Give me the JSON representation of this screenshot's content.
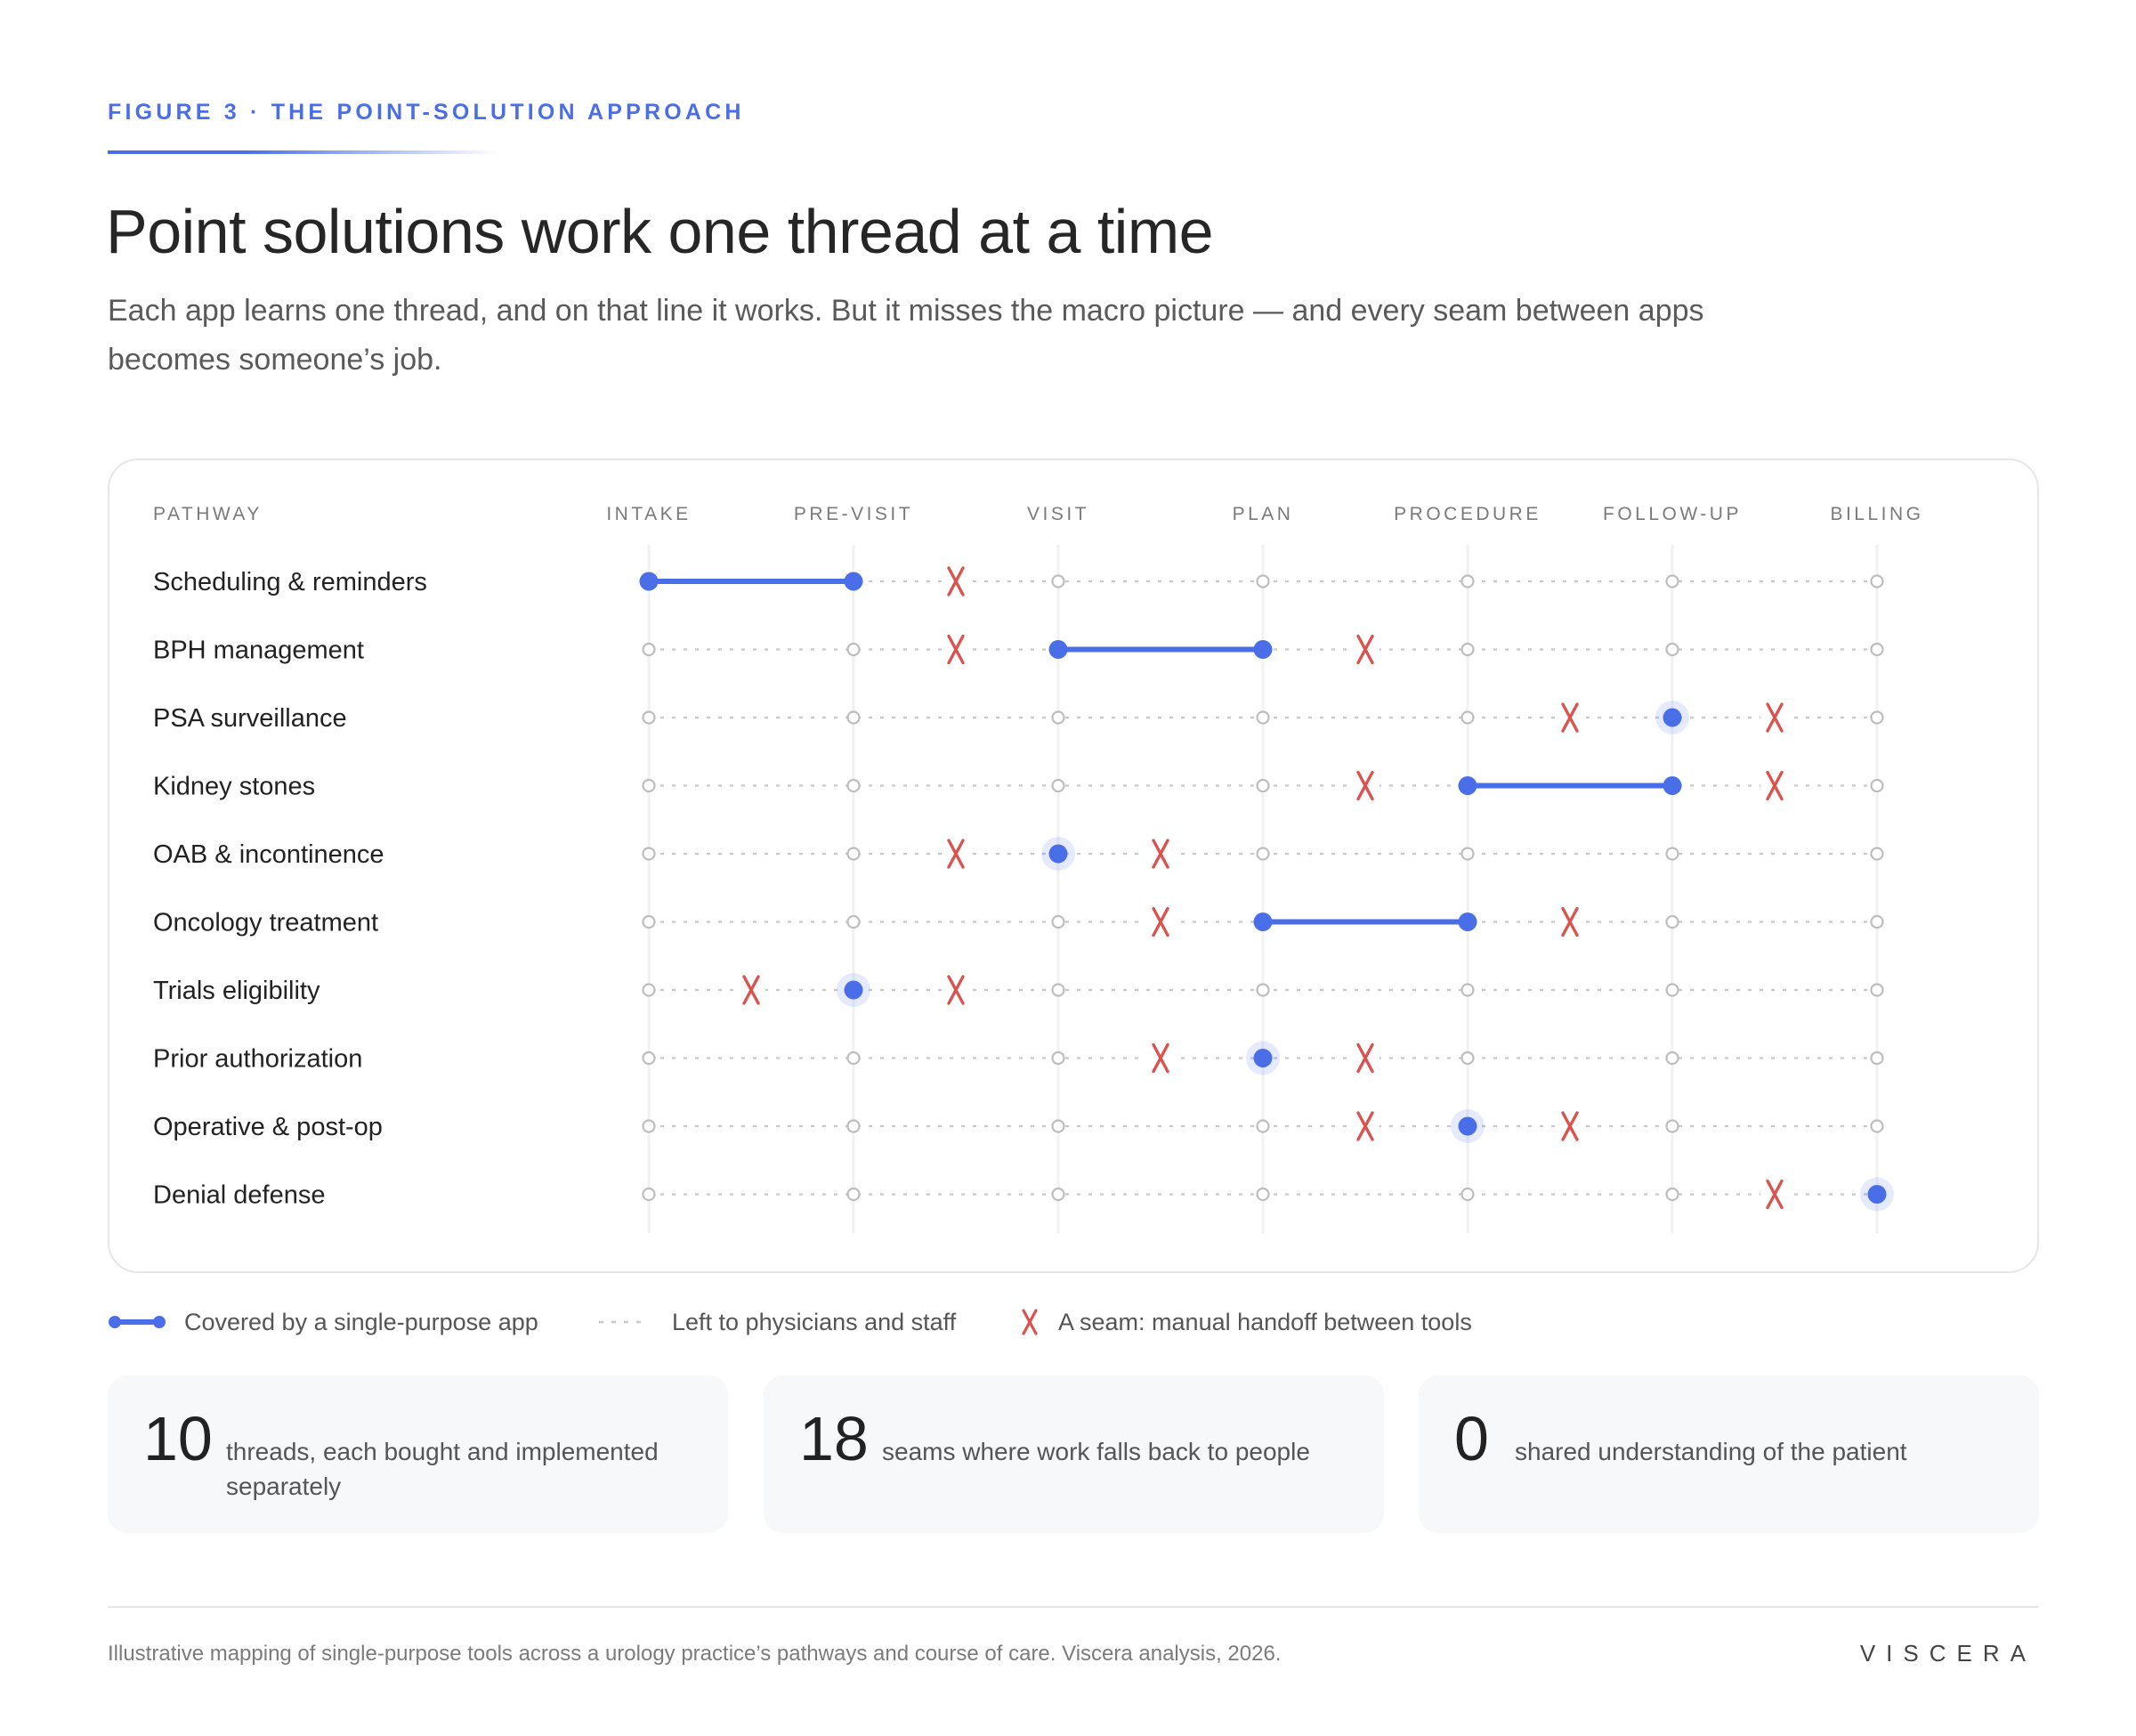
{
  "header": {
    "eyebrow": "FIGURE 3 · THE POINT-SOLUTION APPROACH",
    "title": "Point solutions work one thread at a time",
    "subtitle": "Each app learns one thread, and on that line it works. But it misses the macro picture — and every seam between apps becomes someone’s job."
  },
  "chart_data": {
    "type": "table",
    "row_header": "PATHWAY",
    "stages": [
      "INTAKE",
      "PRE-VISIT",
      "VISIT",
      "PLAN",
      "PROCEDURE",
      "FOLLOW-UP",
      "BILLING"
    ],
    "rows": [
      {
        "label": "Scheduling & reminders",
        "covered": [
          0,
          1
        ],
        "seams": [
          1.5
        ]
      },
      {
        "label": "BPH management",
        "covered": [
          2,
          3
        ],
        "seams": [
          1.5,
          3.5
        ]
      },
      {
        "label": "PSA surveillance",
        "covered": [
          5,
          5
        ],
        "seams": [
          4.5,
          5.5
        ]
      },
      {
        "label": "Kidney stones",
        "covered": [
          4,
          5
        ],
        "seams": [
          3.5,
          5.5
        ]
      },
      {
        "label": "OAB & incontinence",
        "covered": [
          2,
          2
        ],
        "seams": [
          1.5,
          2.5
        ]
      },
      {
        "label": "Oncology treatment",
        "covered": [
          3,
          4
        ],
        "seams": [
          2.5,
          4.5
        ]
      },
      {
        "label": "Trials eligibility",
        "covered": [
          1,
          1
        ],
        "seams": [
          0.5,
          1.5
        ]
      },
      {
        "label": "Prior authorization",
        "covered": [
          3,
          3
        ],
        "seams": [
          2.5,
          3.5
        ]
      },
      {
        "label": "Operative & post-op",
        "covered": [
          4,
          4
        ],
        "seams": [
          3.5,
          4.5
        ]
      },
      {
        "label": "Denial defense",
        "covered": [
          6,
          6
        ],
        "seams": [
          5.5
        ]
      }
    ],
    "colors": {
      "covered": "#4a6ee8",
      "seam": "#d9534f",
      "gap": "#c8c8c8"
    }
  },
  "legend": {
    "covered": "Covered by a single-purpose app",
    "gap": "Left to physicians and staff",
    "seam": "A seam: manual handoff between tools"
  },
  "stats": [
    {
      "number": "10",
      "text": "threads, each bought and implemented separately"
    },
    {
      "number": "18",
      "text": "seams where work falls back to people"
    },
    {
      "number": "0",
      "text": "shared understanding of the patient"
    }
  ],
  "footer": {
    "note": "Illustrative mapping of single-purpose tools across a urology practice’s pathways and course of care. Viscera analysis, 2026.",
    "brand": "VISCERA"
  }
}
